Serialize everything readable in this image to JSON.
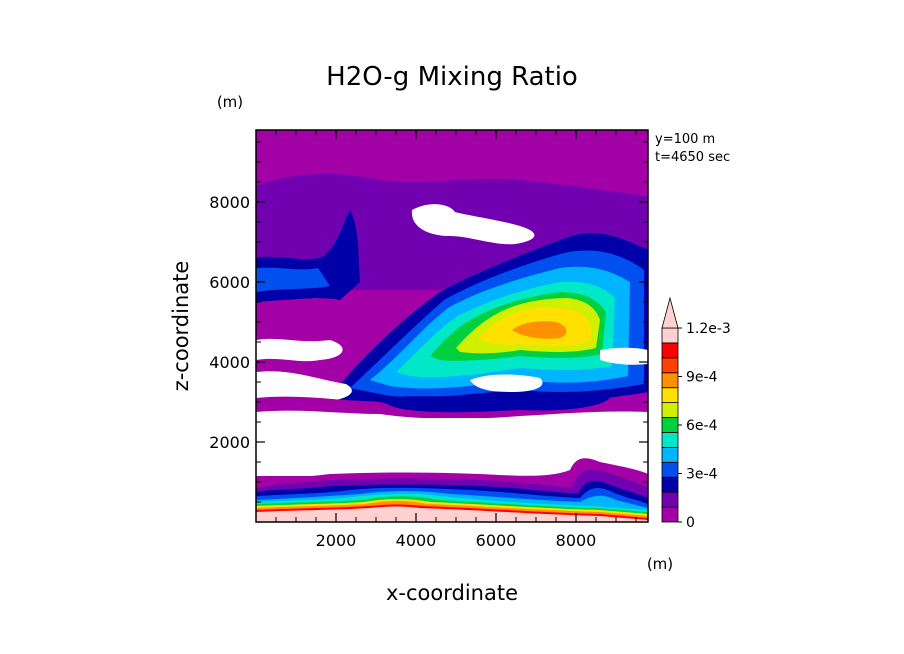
{
  "chart_data": {
    "type": "heatmap",
    "title": "H2O-g Mixing Ratio",
    "xlabel": "x-coordinate",
    "ylabel": "z-coordinate",
    "x_unit": "(m)",
    "y_unit": "(m)",
    "xlim": [
      0,
      9800
    ],
    "ylim": [
      0,
      9800
    ],
    "x_ticks": [
      2000,
      4000,
      6000,
      8000
    ],
    "y_ticks": [
      2000,
      4000,
      6000,
      8000
    ],
    "annotations": [
      "y=100 m",
      "t=4650 sec"
    ],
    "colorbar": {
      "levels": [
        0,
        0.0001,
        0.0002,
        0.0003,
        0.0004,
        0.0005,
        0.0006,
        0.0007,
        0.0008,
        0.0009,
        0.001,
        0.0011,
        0.0012
      ],
      "colors": [
        "#ffffff",
        "#a400a8",
        "#7000b0",
        "#0000a8",
        "#0050f0",
        "#00b4ff",
        "#00e8c8",
        "#00d040",
        "#d0f000",
        "#ffe000",
        "#ff9000",
        "#ff4000",
        "#ff0000",
        "#ffd0d0"
      ],
      "labels": [
        "0",
        "3e-4",
        "6e-4",
        "9e-4",
        "1.2e-3"
      ],
      "extend": "max"
    },
    "grid": false
  }
}
